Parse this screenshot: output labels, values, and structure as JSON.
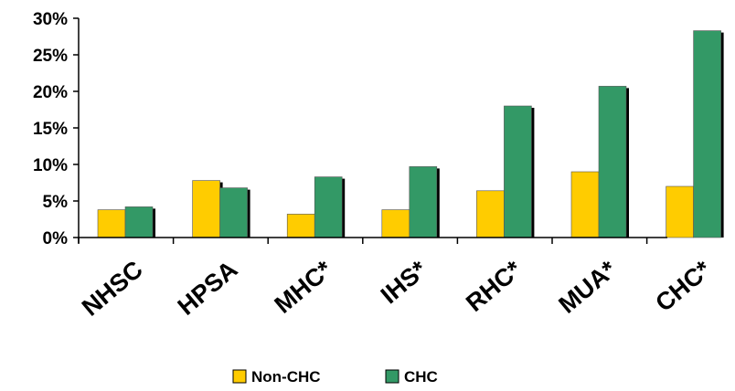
{
  "chart_data": {
    "type": "bar",
    "categories": [
      "NHSC",
      "HPSA",
      "MHC*",
      "IHS*",
      "RHC*",
      "MUA*",
      "CHC*"
    ],
    "series": [
      {
        "name": "Non-CHC",
        "color": "#FFCC00",
        "values": [
          3.8,
          7.8,
          3.2,
          3.8,
          6.4,
          9.0,
          7.0
        ]
      },
      {
        "name": "CHC",
        "color": "#339966",
        "values": [
          4.2,
          6.8,
          8.3,
          9.7,
          18.0,
          20.7,
          28.3
        ]
      }
    ],
    "ylim": [
      0,
      30
    ],
    "yticks": [
      "0%",
      "5%",
      "10%",
      "15%",
      "20%",
      "25%",
      "30%"
    ],
    "grid": false,
    "legend_position": "bottom"
  }
}
